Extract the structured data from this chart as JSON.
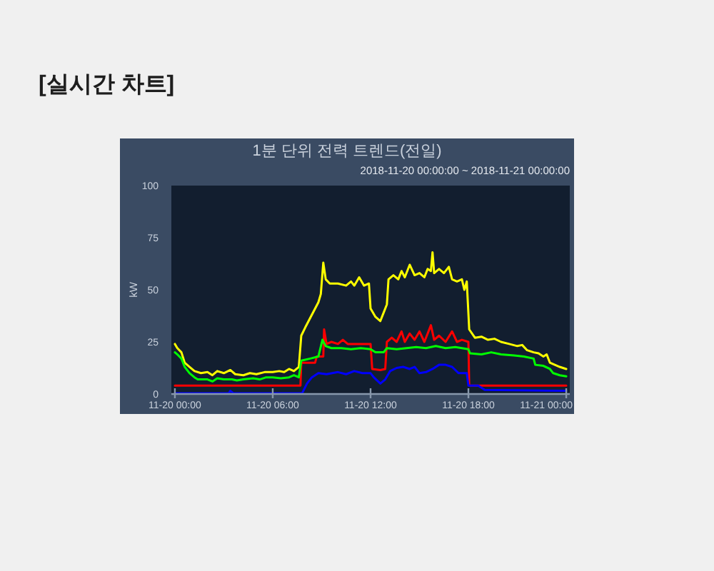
{
  "chart_data": {
    "type": "line",
    "title": "1분 단위 전력 트렌드(전일)",
    "subtitle": "2018-11-20 00:00:00 ~ 2018-11-21 00:00:00",
    "ylabel": "kW",
    "annotations": [
      "[실시간 차트]"
    ],
    "line_style": "solid",
    "xlim": [
      "2018-11-19T23:47",
      "2018-11-21T00:13"
    ],
    "xticks": [
      {
        "value": "2018-11-20T00:00",
        "label": "11-20 00:00"
      },
      {
        "value": "2018-11-20T06:00",
        "label": "11-20 06:00"
      },
      {
        "value": "2018-11-20T12:00",
        "label": "11-20 12:00"
      },
      {
        "value": "2018-11-20T18:00",
        "label": "11-20 18:00"
      },
      {
        "value": "2018-11-21T00:00",
        "label": "11-21 00:00"
      }
    ],
    "ylim": [
      0,
      100
    ],
    "yticks": [
      0,
      25,
      50,
      75,
      100
    ],
    "series": [
      {
        "color": "#ffff00",
        "x": [
          "2018-11-20T00:00",
          "2018-11-20T00:09",
          "2018-11-20T00:24",
          "2018-11-20T00:36",
          "2018-11-20T00:54",
          "2018-11-20T01:12",
          "2018-11-20T01:36",
          "2018-11-20T02:00",
          "2018-11-20T02:18",
          "2018-11-20T02:36",
          "2018-11-20T03:00",
          "2018-11-20T03:24",
          "2018-11-20T03:42",
          "2018-11-20T04:12",
          "2018-11-20T04:36",
          "2018-11-20T05:00",
          "2018-11-20T05:30",
          "2018-11-20T06:00",
          "2018-11-20T06:24",
          "2018-11-20T06:42",
          "2018-11-20T07:00",
          "2018-11-20T07:18",
          "2018-11-20T07:36",
          "2018-11-20T07:45",
          "2018-11-20T08:00",
          "2018-11-20T08:12",
          "2018-11-20T08:24",
          "2018-11-20T08:36",
          "2018-11-20T08:48",
          "2018-11-20T08:57",
          "2018-11-20T09:06",
          "2018-11-20T09:15",
          "2018-11-20T09:30",
          "2018-11-20T10:00",
          "2018-11-20T10:30",
          "2018-11-20T10:48",
          "2018-11-20T11:00",
          "2018-11-20T11:18",
          "2018-11-20T11:36",
          "2018-11-20T11:54",
          "2018-11-20T12:00",
          "2018-11-20T12:18",
          "2018-11-20T12:36",
          "2018-11-20T12:48",
          "2018-11-20T13:00",
          "2018-11-20T13:06",
          "2018-11-20T13:24",
          "2018-11-20T13:42",
          "2018-11-20T13:54",
          "2018-11-20T14:06",
          "2018-11-20T14:24",
          "2018-11-20T14:42",
          "2018-11-20T15:00",
          "2018-11-20T15:18",
          "2018-11-20T15:30",
          "2018-11-20T15:42",
          "2018-11-20T15:48",
          "2018-11-20T15:54",
          "2018-11-20T16:12",
          "2018-11-20T16:30",
          "2018-11-20T16:48",
          "2018-11-20T17:00",
          "2018-11-20T17:18",
          "2018-11-20T17:36",
          "2018-11-20T17:45",
          "2018-11-20T17:54",
          "2018-11-20T18:03",
          "2018-11-20T18:24",
          "2018-11-20T18:48",
          "2018-11-20T19:12",
          "2018-11-20T19:36",
          "2018-11-20T20:00",
          "2018-11-20T20:30",
          "2018-11-20T21:00",
          "2018-11-20T21:18",
          "2018-11-20T21:36",
          "2018-11-20T22:00",
          "2018-11-20T22:18",
          "2018-11-20T22:36",
          "2018-11-20T22:48",
          "2018-11-20T23:00",
          "2018-11-20T23:18",
          "2018-11-20T23:36",
          "2018-11-21T00:00"
        ],
        "values": [
          24,
          22,
          20,
          15,
          13,
          11,
          10,
          10.5,
          9,
          11,
          10,
          11.5,
          9.5,
          9,
          10,
          9.5,
          10.5,
          10.5,
          11,
          10.5,
          12,
          11,
          13,
          28,
          32,
          35,
          38,
          41,
          44,
          48,
          63,
          55,
          53,
          53,
          52,
          54,
          52,
          56,
          52,
          53,
          41,
          37,
          35,
          39,
          43,
          55,
          57,
          55,
          59,
          56,
          62,
          57,
          58,
          56,
          60,
          59,
          68,
          58,
          60,
          58,
          61,
          55,
          54,
          55,
          50,
          54,
          31,
          27,
          27.5,
          26,
          26.5,
          25,
          24,
          23,
          23.5,
          21,
          20,
          19.5,
          18,
          19,
          15,
          14,
          13,
          12
        ]
      },
      {
        "color": "#ff0000",
        "x": [
          "2018-11-20T00:00",
          "2018-11-20T07:42",
          "2018-11-20T07:45",
          "2018-11-20T08:36",
          "2018-11-20T08:42",
          "2018-11-20T09:06",
          "2018-11-20T09:09",
          "2018-11-20T09:18",
          "2018-11-20T09:36",
          "2018-11-20T10:00",
          "2018-11-20T10:18",
          "2018-11-20T10:36",
          "2018-11-20T11:00",
          "2018-11-20T11:30",
          "2018-11-20T12:00",
          "2018-11-20T12:06",
          "2018-11-20T12:36",
          "2018-11-20T12:54",
          "2018-11-20T13:00",
          "2018-11-20T13:18",
          "2018-11-20T13:36",
          "2018-11-20T13:54",
          "2018-11-20T14:06",
          "2018-11-20T14:24",
          "2018-11-20T14:42",
          "2018-11-20T15:00",
          "2018-11-20T15:18",
          "2018-11-20T15:42",
          "2018-11-20T15:54",
          "2018-11-20T16:12",
          "2018-11-20T16:36",
          "2018-11-20T17:00",
          "2018-11-20T17:18",
          "2018-11-20T17:36",
          "2018-11-20T18:00",
          "2018-11-20T18:03",
          "2018-11-21T00:00"
        ],
        "values": [
          4,
          4,
          15,
          15,
          18,
          18,
          31,
          24,
          25,
          24,
          26,
          24,
          24,
          24,
          24,
          12,
          11.5,
          12,
          25,
          27,
          25,
          30,
          25,
          29,
          26,
          30,
          25,
          33,
          26,
          28,
          25,
          30,
          25,
          26,
          25,
          4,
          4
        ]
      },
      {
        "color": "#00ff00",
        "x": [
          "2018-11-20T00:00",
          "2018-11-20T00:09",
          "2018-11-20T00:24",
          "2018-11-20T00:36",
          "2018-11-20T00:54",
          "2018-11-20T01:12",
          "2018-11-20T01:24",
          "2018-11-20T02:00",
          "2018-11-20T02:18",
          "2018-11-20T02:36",
          "2018-11-20T03:00",
          "2018-11-20T03:30",
          "2018-11-20T03:48",
          "2018-11-20T04:12",
          "2018-11-20T04:48",
          "2018-11-20T05:12",
          "2018-11-20T05:36",
          "2018-11-20T06:00",
          "2018-11-20T06:30",
          "2018-11-20T07:00",
          "2018-11-20T07:18",
          "2018-11-20T07:36",
          "2018-11-20T07:45",
          "2018-11-20T08:18",
          "2018-11-20T08:48",
          "2018-11-20T09:03",
          "2018-11-20T09:15",
          "2018-11-20T09:36",
          "2018-11-20T10:12",
          "2018-11-20T10:48",
          "2018-11-20T11:24",
          "2018-11-20T12:00",
          "2018-11-20T12:18",
          "2018-11-20T12:48",
          "2018-11-20T13:00",
          "2018-11-20T13:36",
          "2018-11-20T14:12",
          "2018-11-20T14:48",
          "2018-11-20T15:24",
          "2018-11-20T16:00",
          "2018-11-20T16:36",
          "2018-11-20T17:12",
          "2018-11-20T18:00",
          "2018-11-20T18:06",
          "2018-11-20T18:48",
          "2018-11-20T19:24",
          "2018-11-20T20:00",
          "2018-11-20T20:48",
          "2018-11-20T21:24",
          "2018-11-20T22:00",
          "2018-11-20T22:06",
          "2018-11-20T22:36",
          "2018-11-20T23:00",
          "2018-11-20T23:12",
          "2018-11-20T23:36",
          "2018-11-21T00:00"
        ],
        "values": [
          20,
          19,
          17,
          13,
          10,
          8,
          7,
          7,
          6,
          7.5,
          7,
          7,
          6.5,
          7,
          7.5,
          7,
          8,
          8,
          7.5,
          8,
          9,
          8,
          16,
          17,
          18,
          26,
          23,
          22,
          22,
          21.5,
          22,
          21.5,
          20,
          20,
          22,
          21.5,
          22,
          22.5,
          22,
          23,
          22,
          22.5,
          21.5,
          19.5,
          19,
          20,
          19,
          18.5,
          18,
          17,
          14,
          13.5,
          12,
          10,
          9,
          8.5
        ]
      },
      {
        "color": "#0000ff",
        "x": [
          "2018-11-20T00:00",
          "2018-11-20T03:18",
          "2018-11-20T03:24",
          "2018-11-20T03:36",
          "2018-11-20T07:48",
          "2018-11-20T08:06",
          "2018-11-20T08:24",
          "2018-11-20T08:48",
          "2018-11-20T09:18",
          "2018-11-20T10:00",
          "2018-11-20T10:30",
          "2018-11-20T11:00",
          "2018-11-20T11:30",
          "2018-11-20T12:00",
          "2018-11-20T12:12",
          "2018-11-20T12:36",
          "2018-11-20T12:54",
          "2018-11-20T13:12",
          "2018-11-20T13:36",
          "2018-11-20T14:00",
          "2018-11-20T14:24",
          "2018-11-20T14:42",
          "2018-11-20T15:00",
          "2018-11-20T15:24",
          "2018-11-20T15:48",
          "2018-11-20T16:12",
          "2018-11-20T16:36",
          "2018-11-20T17:00",
          "2018-11-20T17:24",
          "2018-11-20T17:54",
          "2018-11-20T18:00",
          "2018-11-20T18:36",
          "2018-11-20T19:00",
          "2018-11-21T00:00"
        ],
        "values": [
          0.3,
          0.3,
          1.5,
          0.3,
          0.3,
          5,
          8,
          10,
          9.5,
          10.5,
          9.5,
          11,
          10,
          10,
          8,
          5,
          7,
          11,
          12.5,
          13,
          12,
          13,
          10,
          10.5,
          12,
          14,
          14,
          13,
          10,
          10,
          4,
          4,
          2,
          1.5
        ]
      }
    ]
  }
}
